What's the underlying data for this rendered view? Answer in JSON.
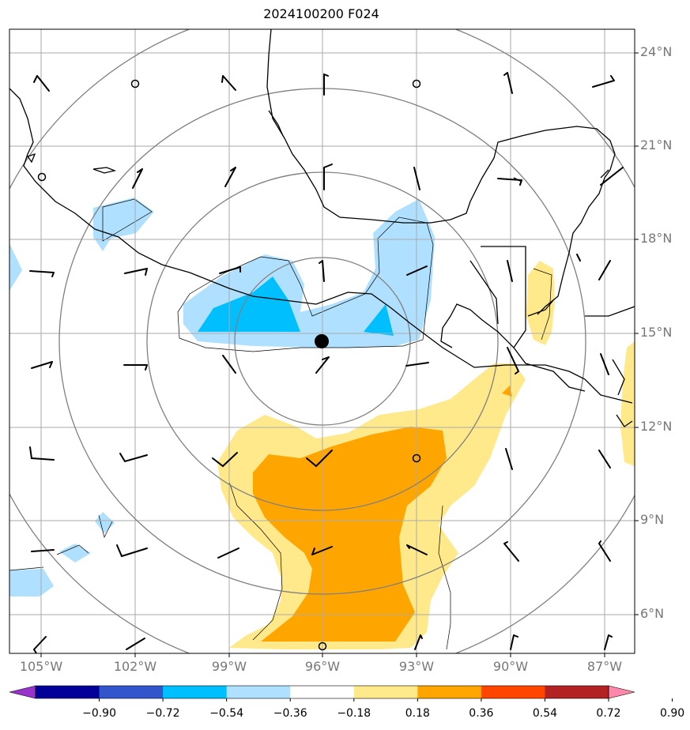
{
  "title": "2024100200 F024",
  "lat_labels": [
    "24°N",
    "21°N",
    "18°N",
    "15°N",
    "12°N",
    "9°N",
    "6°N"
  ],
  "lon_labels": [
    "105°W",
    "102°W",
    "99°W",
    "96°W",
    "93°W",
    "90°W",
    "87°W"
  ],
  "colorbar": {
    "ticks": [
      "−0.90",
      "−0.72",
      "−0.54",
      "−0.36",
      "−0.18",
      "0.18",
      "0.36",
      "0.54",
      "0.72",
      "0.90"
    ],
    "colors": [
      "#9933cc",
      "#000099",
      "#3355cc",
      "#00bfff",
      "#b0e0ff",
      "#ffffff",
      "#ffe98a",
      "#ffa500",
      "#ff4500",
      "#b22222",
      "#ff88aa"
    ]
  },
  "center_marker": {
    "lon": "96°W",
    "lat": "15°N"
  },
  "colors": {
    "coast": "#000000",
    "grid": "#888888",
    "ring": "#808080",
    "marker": "#000000"
  }
}
